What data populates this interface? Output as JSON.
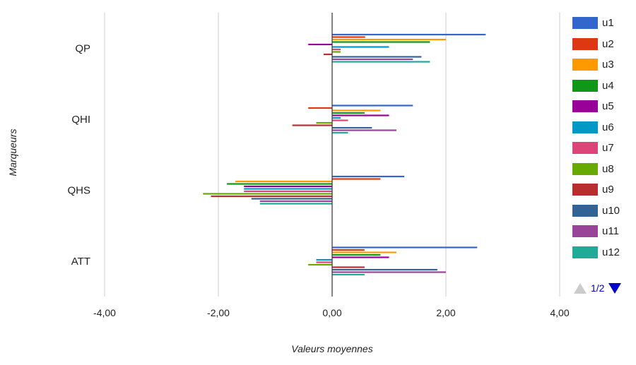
{
  "chart_data": {
    "type": "bar",
    "orientation": "horizontal",
    "xlabel": "Valeurs moyennes",
    "ylabel": "Marqueurs",
    "xlim": [
      -4,
      4
    ],
    "x_ticks": [
      "-4,00",
      "-2,00",
      "0,00",
      "2,00",
      "4,00"
    ],
    "x_tick_values": [
      -4,
      -2,
      0,
      2,
      4
    ],
    "categories": [
      "QP",
      "QHI",
      "QHS",
      "ATT"
    ],
    "grid": true,
    "legend_position": "right",
    "series": [
      {
        "name": "u1",
        "color": "#3366cc",
        "values": [
          2.7,
          1.42,
          1.27,
          2.55
        ]
      },
      {
        "name": "u2",
        "color": "#dc3912",
        "values": [
          0.58,
          -0.42,
          0.85,
          0.57
        ]
      },
      {
        "name": "u3",
        "color": "#ff9900",
        "values": [
          2.0,
          0.85,
          -1.7,
          1.13
        ]
      },
      {
        "name": "u4",
        "color": "#109618",
        "values": [
          1.72,
          0.57,
          -1.85,
          0.85
        ]
      },
      {
        "name": "u5",
        "color": "#990099",
        "values": [
          -0.42,
          1.0,
          -1.55,
          1.0
        ]
      },
      {
        "name": "u6",
        "color": "#0099c6",
        "values": [
          1.0,
          0.15,
          -1.55,
          -0.28
        ]
      },
      {
        "name": "u7",
        "color": "#dd4477",
        "values": [
          0.15,
          0.28,
          -1.55,
          -0.28
        ]
      },
      {
        "name": "u8",
        "color": "#66aa00",
        "values": [
          0.15,
          -0.28,
          -2.27,
          -0.42
        ]
      },
      {
        "name": "u9",
        "color": "#b82e2e",
        "values": [
          -0.15,
          -0.7,
          -2.13,
          0.57
        ]
      },
      {
        "name": "u10",
        "color": "#316395",
        "values": [
          1.57,
          0.7,
          -1.42,
          1.85
        ]
      },
      {
        "name": "u11",
        "color": "#994499",
        "values": [
          1.42,
          1.13,
          -1.27,
          2.0
        ]
      },
      {
        "name": "u12",
        "color": "#22aa99",
        "values": [
          1.72,
          0.28,
          -1.27,
          0.57
        ]
      }
    ]
  },
  "legend": {
    "items": [
      {
        "label": "u1",
        "color": "#3366cc"
      },
      {
        "label": "u2",
        "color": "#dc3912"
      },
      {
        "label": "u3",
        "color": "#ff9900"
      },
      {
        "label": "u4",
        "color": "#109618"
      },
      {
        "label": "u5",
        "color": "#990099"
      },
      {
        "label": "u6",
        "color": "#0099c6"
      },
      {
        "label": "u7",
        "color": "#dd4477"
      },
      {
        "label": "u8",
        "color": "#66aa00"
      },
      {
        "label": "u9",
        "color": "#b82e2e"
      },
      {
        "label": "u10",
        "color": "#316395"
      },
      {
        "label": "u11",
        "color": "#994499"
      },
      {
        "label": "u12",
        "color": "#22aa99"
      }
    ],
    "page_label": "1/2"
  }
}
